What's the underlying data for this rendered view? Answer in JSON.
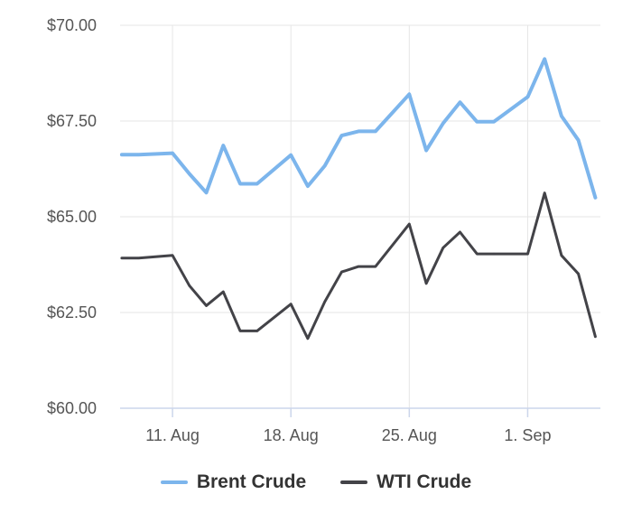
{
  "chart_data": {
    "type": "line",
    "title": "",
    "xlabel": "",
    "ylabel": "",
    "ylim": [
      60,
      70
    ],
    "y_ticks": [
      "$70.00",
      "$67.50",
      "$65.00",
      "$62.50",
      "$60.00"
    ],
    "y_tick_values": [
      70,
      67.5,
      65,
      62.5,
      60
    ],
    "x_ticks": [
      "11. Aug",
      "18. Aug",
      "25. Aug",
      "1. Sep"
    ],
    "x_tick_days": [
      11,
      18,
      25,
      32
    ],
    "xlim_days": [
      7.9,
      36.3
    ],
    "x_days": [
      8,
      9,
      11,
      12,
      13,
      14,
      15,
      16,
      18,
      19,
      20,
      21,
      22,
      23,
      25,
      26,
      27,
      28,
      29,
      30,
      32,
      33,
      34,
      35,
      36
    ],
    "grid": true,
    "legend_position": "bottom",
    "series": [
      {
        "name": "Brent Crude",
        "color": "#7cb5ec",
        "values": [
          66.62,
          66.62,
          66.66,
          66.12,
          65.63,
          66.86,
          65.86,
          65.86,
          66.61,
          65.8,
          66.33,
          67.12,
          67.23,
          67.23,
          68.2,
          66.73,
          67.44,
          67.99,
          67.48,
          67.48,
          68.13,
          69.12,
          67.63,
          67.0,
          65.5
        ]
      },
      {
        "name": "WTI Crude",
        "color": "#434348",
        "values": [
          63.92,
          63.92,
          63.99,
          63.2,
          62.68,
          63.04,
          62.02,
          62.02,
          62.72,
          61.82,
          62.78,
          63.56,
          63.7,
          63.7,
          64.81,
          63.26,
          64.19,
          64.6,
          64.03,
          64.03,
          64.03,
          65.62,
          63.99,
          63.51,
          61.87
        ]
      }
    ]
  }
}
